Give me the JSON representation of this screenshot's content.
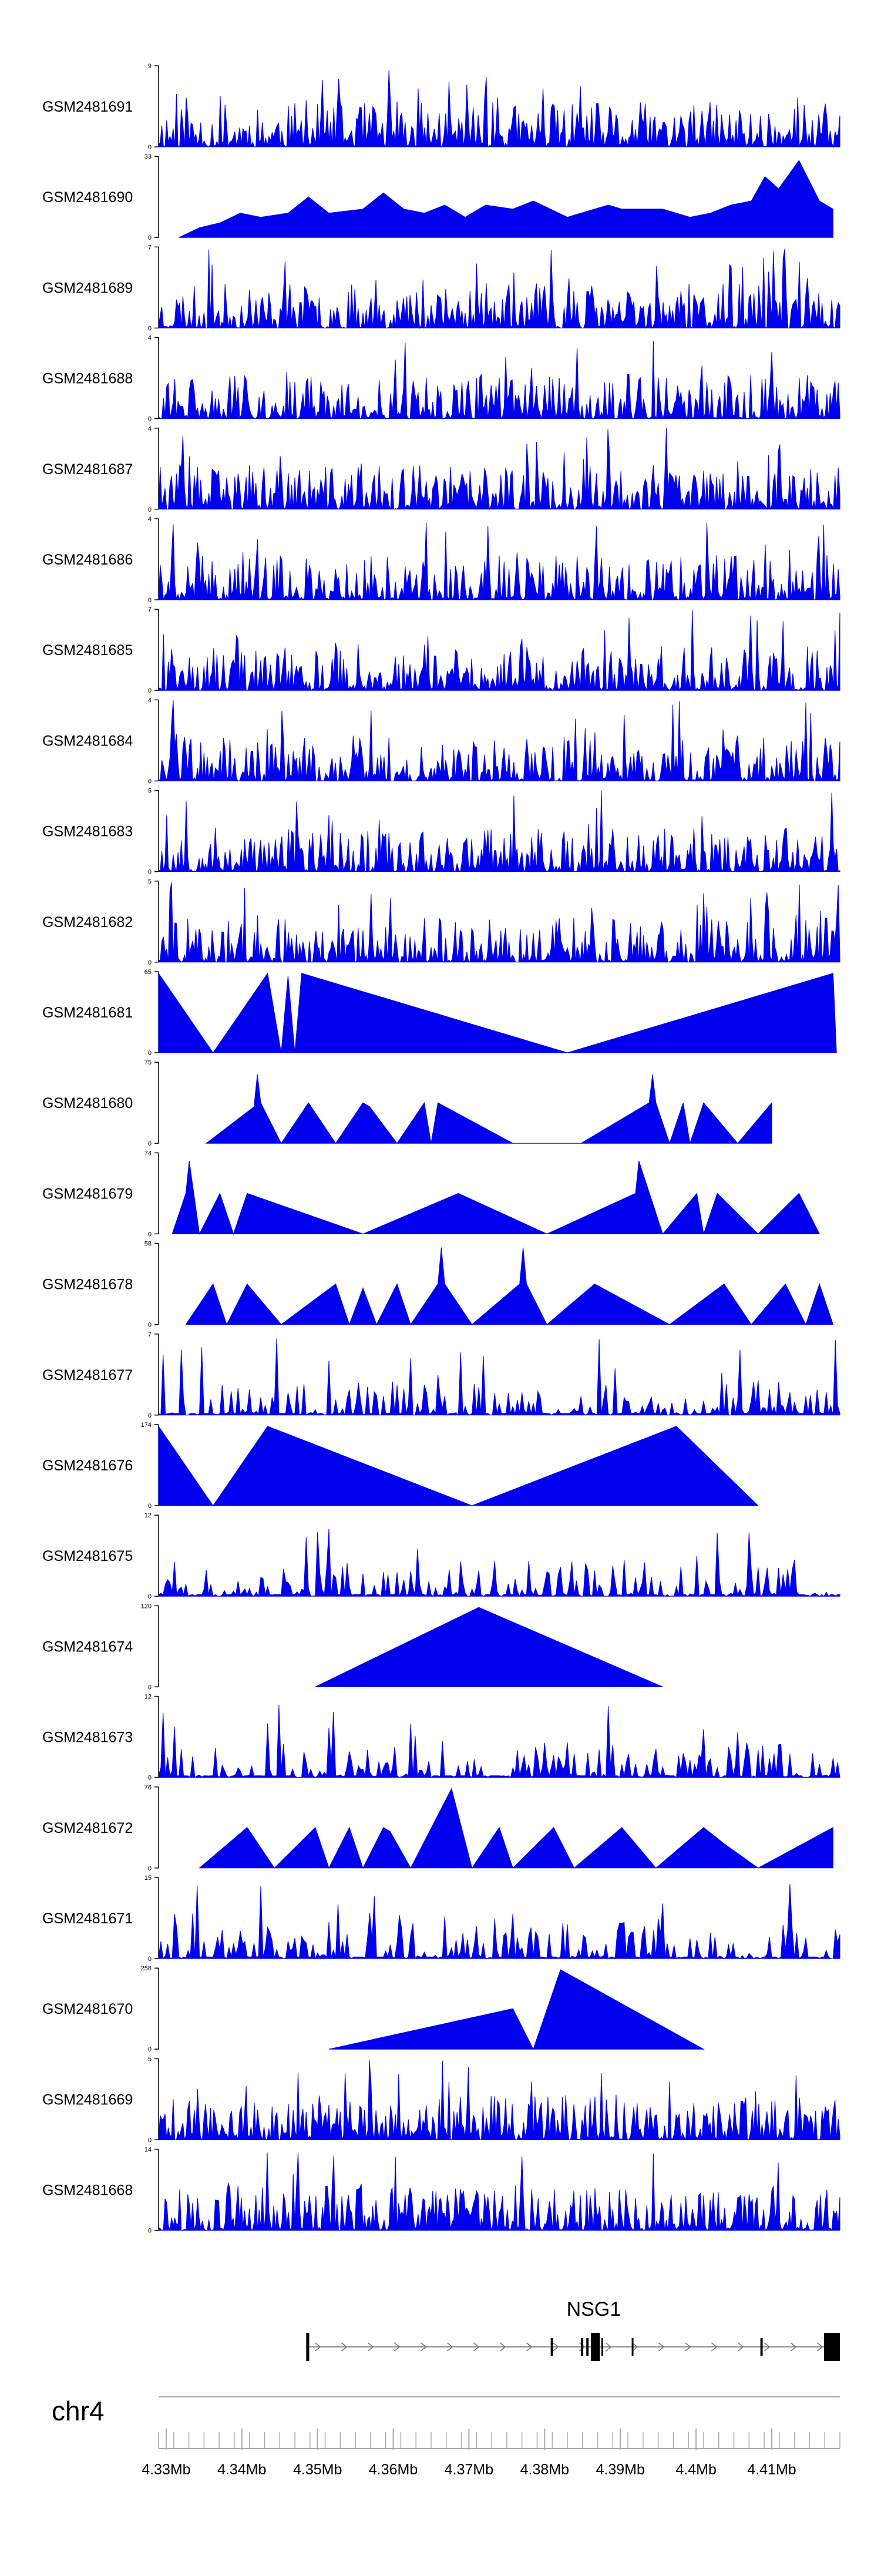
{
  "chart_data": {
    "type": "area",
    "colors": {
      "fill": "#0000ee",
      "axis": "#000000",
      "genome_axis": "#aaaaaa"
    },
    "x_axis": {
      "chromosome": "chr4",
      "range_mb": [
        4.329,
        4.419
      ],
      "ticks": [
        "4.33Mb",
        "4.34Mb",
        "4.35Mb",
        "4.36Mb",
        "4.37Mb",
        "4.38Mb",
        "4.39Mb",
        "4.4Mb",
        "4.41Mb"
      ],
      "tick_values_mb": [
        4.33,
        4.34,
        4.35,
        4.36,
        4.37,
        4.38,
        4.39,
        4.4,
        4.41
      ]
    },
    "gene": {
      "name": "NSG1",
      "start_mb": 4.3485,
      "end_mb": 4.419,
      "strand": "+",
      "exons_mb": [
        [
          4.3485,
          4.3489
        ],
        [
          4.3808,
          4.3811
        ],
        [
          4.3848,
          4.3851
        ],
        [
          4.3855,
          4.3858
        ],
        [
          4.3861,
          4.3873
        ],
        [
          4.3875,
          4.3877
        ],
        [
          4.3915,
          4.3917
        ],
        [
          4.4085,
          4.4088
        ],
        [
          4.4169,
          4.419
        ]
      ]
    },
    "tracks": [
      {
        "label": "GSM2481691",
        "ymax": "9",
        "style": "dense",
        "seed": 11
      },
      {
        "label": "GSM2481690",
        "ymax": "33",
        "style": "triangles",
        "start": 0.03,
        "peaks": [
          [
            0.06,
            0.12
          ],
          [
            0.09,
            0.18
          ],
          [
            0.12,
            0.3
          ],
          [
            0.15,
            0.25
          ],
          [
            0.19,
            0.3
          ],
          [
            0.22,
            0.5
          ],
          [
            0.25,
            0.3
          ],
          [
            0.3,
            0.35
          ],
          [
            0.33,
            0.55
          ],
          [
            0.36,
            0.35
          ],
          [
            0.39,
            0.3
          ],
          [
            0.42,
            0.4
          ],
          [
            0.45,
            0.25
          ],
          [
            0.48,
            0.4
          ],
          [
            0.52,
            0.35
          ],
          [
            0.55,
            0.45
          ],
          [
            0.6,
            0.25
          ],
          [
            0.66,
            0.4
          ],
          [
            0.68,
            0.35
          ],
          [
            0.74,
            0.35
          ],
          [
            0.78,
            0.25
          ],
          [
            0.81,
            0.3
          ],
          [
            0.84,
            0.4
          ],
          [
            0.87,
            0.45
          ],
          [
            0.89,
            0.75
          ],
          [
            0.91,
            0.6
          ],
          [
            0.94,
            0.95
          ],
          [
            0.97,
            0.45
          ],
          [
            0.99,
            0.35
          ]
        ]
      },
      {
        "label": "GSM2481689",
        "ymax": "7",
        "style": "dense",
        "seed": 23
      },
      {
        "label": "GSM2481688",
        "ymax": "4",
        "style": "dense",
        "seed": 31
      },
      {
        "label": "GSM2481687",
        "ymax": "4",
        "style": "dense",
        "seed": 37
      },
      {
        "label": "GSM2481686",
        "ymax": "4",
        "style": "dense",
        "seed": 41
      },
      {
        "label": "GSM2481685",
        "ymax": "7",
        "style": "dense",
        "seed": 43
      },
      {
        "label": "GSM2481684",
        "ymax": "4",
        "style": "dense",
        "seed": 47
      },
      {
        "label": "GSM2481683",
        "ymax": "5",
        "style": "dense",
        "seed": 53
      },
      {
        "label": "GSM2481682",
        "ymax": "5",
        "style": "dense",
        "seed": 59
      },
      {
        "label": "GSM2481681",
        "ymax": "65",
        "style": "triangles",
        "start": 0.0,
        "peaks": [
          [
            0.0,
            0.98
          ],
          [
            0.08,
            0.0
          ],
          [
            0.16,
            0.98
          ],
          [
            0.18,
            0.0
          ],
          [
            0.19,
            0.95
          ],
          [
            0.2,
            0.0
          ],
          [
            0.21,
            0.98
          ],
          [
            0.6,
            0.0
          ],
          [
            0.99,
            0.98
          ],
          [
            0.995,
            0.0
          ]
        ]
      },
      {
        "label": "GSM2481680",
        "ymax": "75",
        "style": "triangles",
        "start": 0.07,
        "peaks": [
          [
            0.14,
            0.45
          ],
          [
            0.145,
            0.85
          ],
          [
            0.15,
            0.5
          ],
          [
            0.18,
            0.0
          ],
          [
            0.22,
            0.5
          ],
          [
            0.26,
            0.0
          ],
          [
            0.3,
            0.5
          ],
          [
            0.31,
            0.45
          ],
          [
            0.35,
            0.0
          ],
          [
            0.39,
            0.5
          ],
          [
            0.4,
            0.0
          ],
          [
            0.41,
            0.5
          ],
          [
            0.52,
            0.0
          ],
          [
            0.62,
            0.0
          ],
          [
            0.72,
            0.5
          ],
          [
            0.725,
            0.85
          ],
          [
            0.73,
            0.5
          ],
          [
            0.75,
            0.0
          ],
          [
            0.77,
            0.5
          ],
          [
            0.78,
            0.0
          ],
          [
            0.8,
            0.5
          ],
          [
            0.85,
            0.0
          ],
          [
            0.9,
            0.5
          ]
        ]
      },
      {
        "label": "GSM2481679",
        "ymax": "74",
        "style": "triangles",
        "start": 0.02,
        "peaks": [
          [
            0.04,
            0.5
          ],
          [
            0.045,
            0.9
          ],
          [
            0.06,
            0.0
          ],
          [
            0.09,
            0.5
          ],
          [
            0.11,
            0.0
          ],
          [
            0.13,
            0.5
          ],
          [
            0.3,
            0.0
          ],
          [
            0.44,
            0.5
          ],
          [
            0.57,
            0.0
          ],
          [
            0.7,
            0.5
          ],
          [
            0.705,
            0.9
          ],
          [
            0.74,
            0.0
          ],
          [
            0.79,
            0.5
          ],
          [
            0.8,
            0.0
          ],
          [
            0.82,
            0.5
          ],
          [
            0.88,
            0.0
          ],
          [
            0.94,
            0.5
          ],
          [
            0.97,
            0.0
          ]
        ]
      },
      {
        "label": "GSM2481678",
        "ymax": "58",
        "style": "triangles",
        "start": 0.04,
        "peaks": [
          [
            0.08,
            0.5
          ],
          [
            0.1,
            0.0
          ],
          [
            0.13,
            0.5
          ],
          [
            0.18,
            0.0
          ],
          [
            0.26,
            0.5
          ],
          [
            0.28,
            0.0
          ],
          [
            0.3,
            0.45
          ],
          [
            0.32,
            0.0
          ],
          [
            0.35,
            0.5
          ],
          [
            0.37,
            0.0
          ],
          [
            0.41,
            0.5
          ],
          [
            0.415,
            0.95
          ],
          [
            0.42,
            0.5
          ],
          [
            0.46,
            0.0
          ],
          [
            0.53,
            0.5
          ],
          [
            0.535,
            0.95
          ],
          [
            0.54,
            0.5
          ],
          [
            0.57,
            0.0
          ],
          [
            0.64,
            0.5
          ],
          [
            0.75,
            0.0
          ],
          [
            0.83,
            0.5
          ],
          [
            0.87,
            0.0
          ],
          [
            0.92,
            0.5
          ],
          [
            0.95,
            0.0
          ],
          [
            0.97,
            0.5
          ],
          [
            0.99,
            0.0
          ]
        ]
      },
      {
        "label": "GSM2481677",
        "ymax": "7",
        "style": "sparse",
        "seed": 67
      },
      {
        "label": "GSM2481676",
        "ymax": "174",
        "style": "triangles",
        "start": 0.0,
        "peaks": [
          [
            0.0,
            0.98
          ],
          [
            0.08,
            0.0
          ],
          [
            0.16,
            0.98
          ],
          [
            0.46,
            0.0
          ],
          [
            0.76,
            0.98
          ],
          [
            0.88,
            0.0
          ]
        ]
      },
      {
        "label": "GSM2481675",
        "ymax": "12",
        "style": "sparse",
        "seed": 73
      },
      {
        "label": "GSM2481674",
        "ymax": "120",
        "style": "triangles",
        "start": 0.23,
        "peaks": [
          [
            0.47,
            0.98
          ],
          [
            0.74,
            0.0
          ]
        ]
      },
      {
        "label": "GSM2481673",
        "ymax": "12",
        "style": "sparse",
        "seed": 79
      },
      {
        "label": "GSM2481672",
        "ymax": "76",
        "style": "triangles",
        "start": 0.06,
        "peaks": [
          [
            0.13,
            0.5
          ],
          [
            0.17,
            0.0
          ],
          [
            0.23,
            0.5
          ],
          [
            0.25,
            0.0
          ],
          [
            0.28,
            0.5
          ],
          [
            0.3,
            0.0
          ],
          [
            0.33,
            0.5
          ],
          [
            0.34,
            0.45
          ],
          [
            0.37,
            0.0
          ],
          [
            0.43,
            0.98
          ],
          [
            0.46,
            0.0
          ],
          [
            0.5,
            0.5
          ],
          [
            0.52,
            0.0
          ],
          [
            0.58,
            0.5
          ],
          [
            0.61,
            0.0
          ],
          [
            0.68,
            0.5
          ],
          [
            0.73,
            0.0
          ],
          [
            0.8,
            0.5
          ],
          [
            0.83,
            0.3
          ],
          [
            0.88,
            0.0
          ],
          [
            0.99,
            0.5
          ]
        ]
      },
      {
        "label": "GSM2481671",
        "ymax": "15",
        "style": "sparse",
        "seed": 83
      },
      {
        "label": "GSM2481670",
        "ymax": "258",
        "style": "triangles",
        "start": 0.25,
        "peaks": [
          [
            0.52,
            0.5
          ],
          [
            0.55,
            0.0
          ],
          [
            0.59,
            0.98
          ],
          [
            0.8,
            0.0
          ]
        ]
      },
      {
        "label": "GSM2481669",
        "ymax": "5",
        "style": "dense",
        "seed": 89
      },
      {
        "label": "GSM2481668",
        "ymax": "14",
        "style": "dense",
        "seed": 97
      }
    ]
  }
}
